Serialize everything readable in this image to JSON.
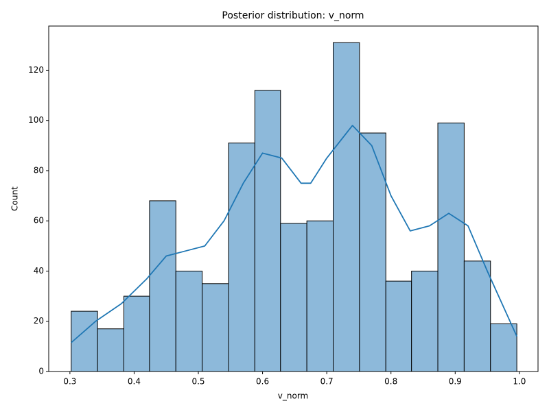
{
  "chart_data": {
    "type": "histogram",
    "title": "Posterior distribution: v_norm",
    "xlabel": "v_norm",
    "ylabel": "Count",
    "bins": [
      0.302,
      0.343,
      0.384,
      0.424,
      0.465,
      0.506,
      0.547,
      0.588,
      0.628,
      0.669,
      0.71,
      0.751,
      0.792,
      0.832,
      0.873,
      0.914,
      0.955,
      0.996
    ],
    "counts": [
      24,
      17,
      30,
      68,
      40,
      35,
      91,
      112,
      59,
      60,
      131,
      95,
      36,
      40,
      99,
      44,
      19
    ],
    "color": "#8db9da",
    "edgecolor": "#000000",
    "kde": {
      "color": "#1f77b4",
      "x": [
        0.302,
        0.34,
        0.38,
        0.42,
        0.45,
        0.48,
        0.51,
        0.54,
        0.57,
        0.6,
        0.63,
        0.66,
        0.675,
        0.7,
        0.74,
        0.77,
        0.8,
        0.83,
        0.86,
        0.89,
        0.92,
        0.95,
        0.996
      ],
      "values": [
        11.5,
        20,
        27,
        37,
        46,
        48,
        50,
        60,
        75,
        87,
        85,
        75,
        75,
        85,
        98,
        90,
        70,
        56,
        58,
        63,
        58,
        40,
        14
      ]
    },
    "xlim": [
      0.267,
      1.029
    ],
    "ylim": [
      0,
      137.6
    ],
    "xticks": [
      0.3,
      0.4,
      0.5,
      0.6,
      0.7,
      0.8,
      0.9,
      {
        "value": 1,
        "label": "1.0"
      }
    ],
    "yticks": [
      0,
      20,
      40,
      60,
      80,
      100,
      120
    ]
  }
}
